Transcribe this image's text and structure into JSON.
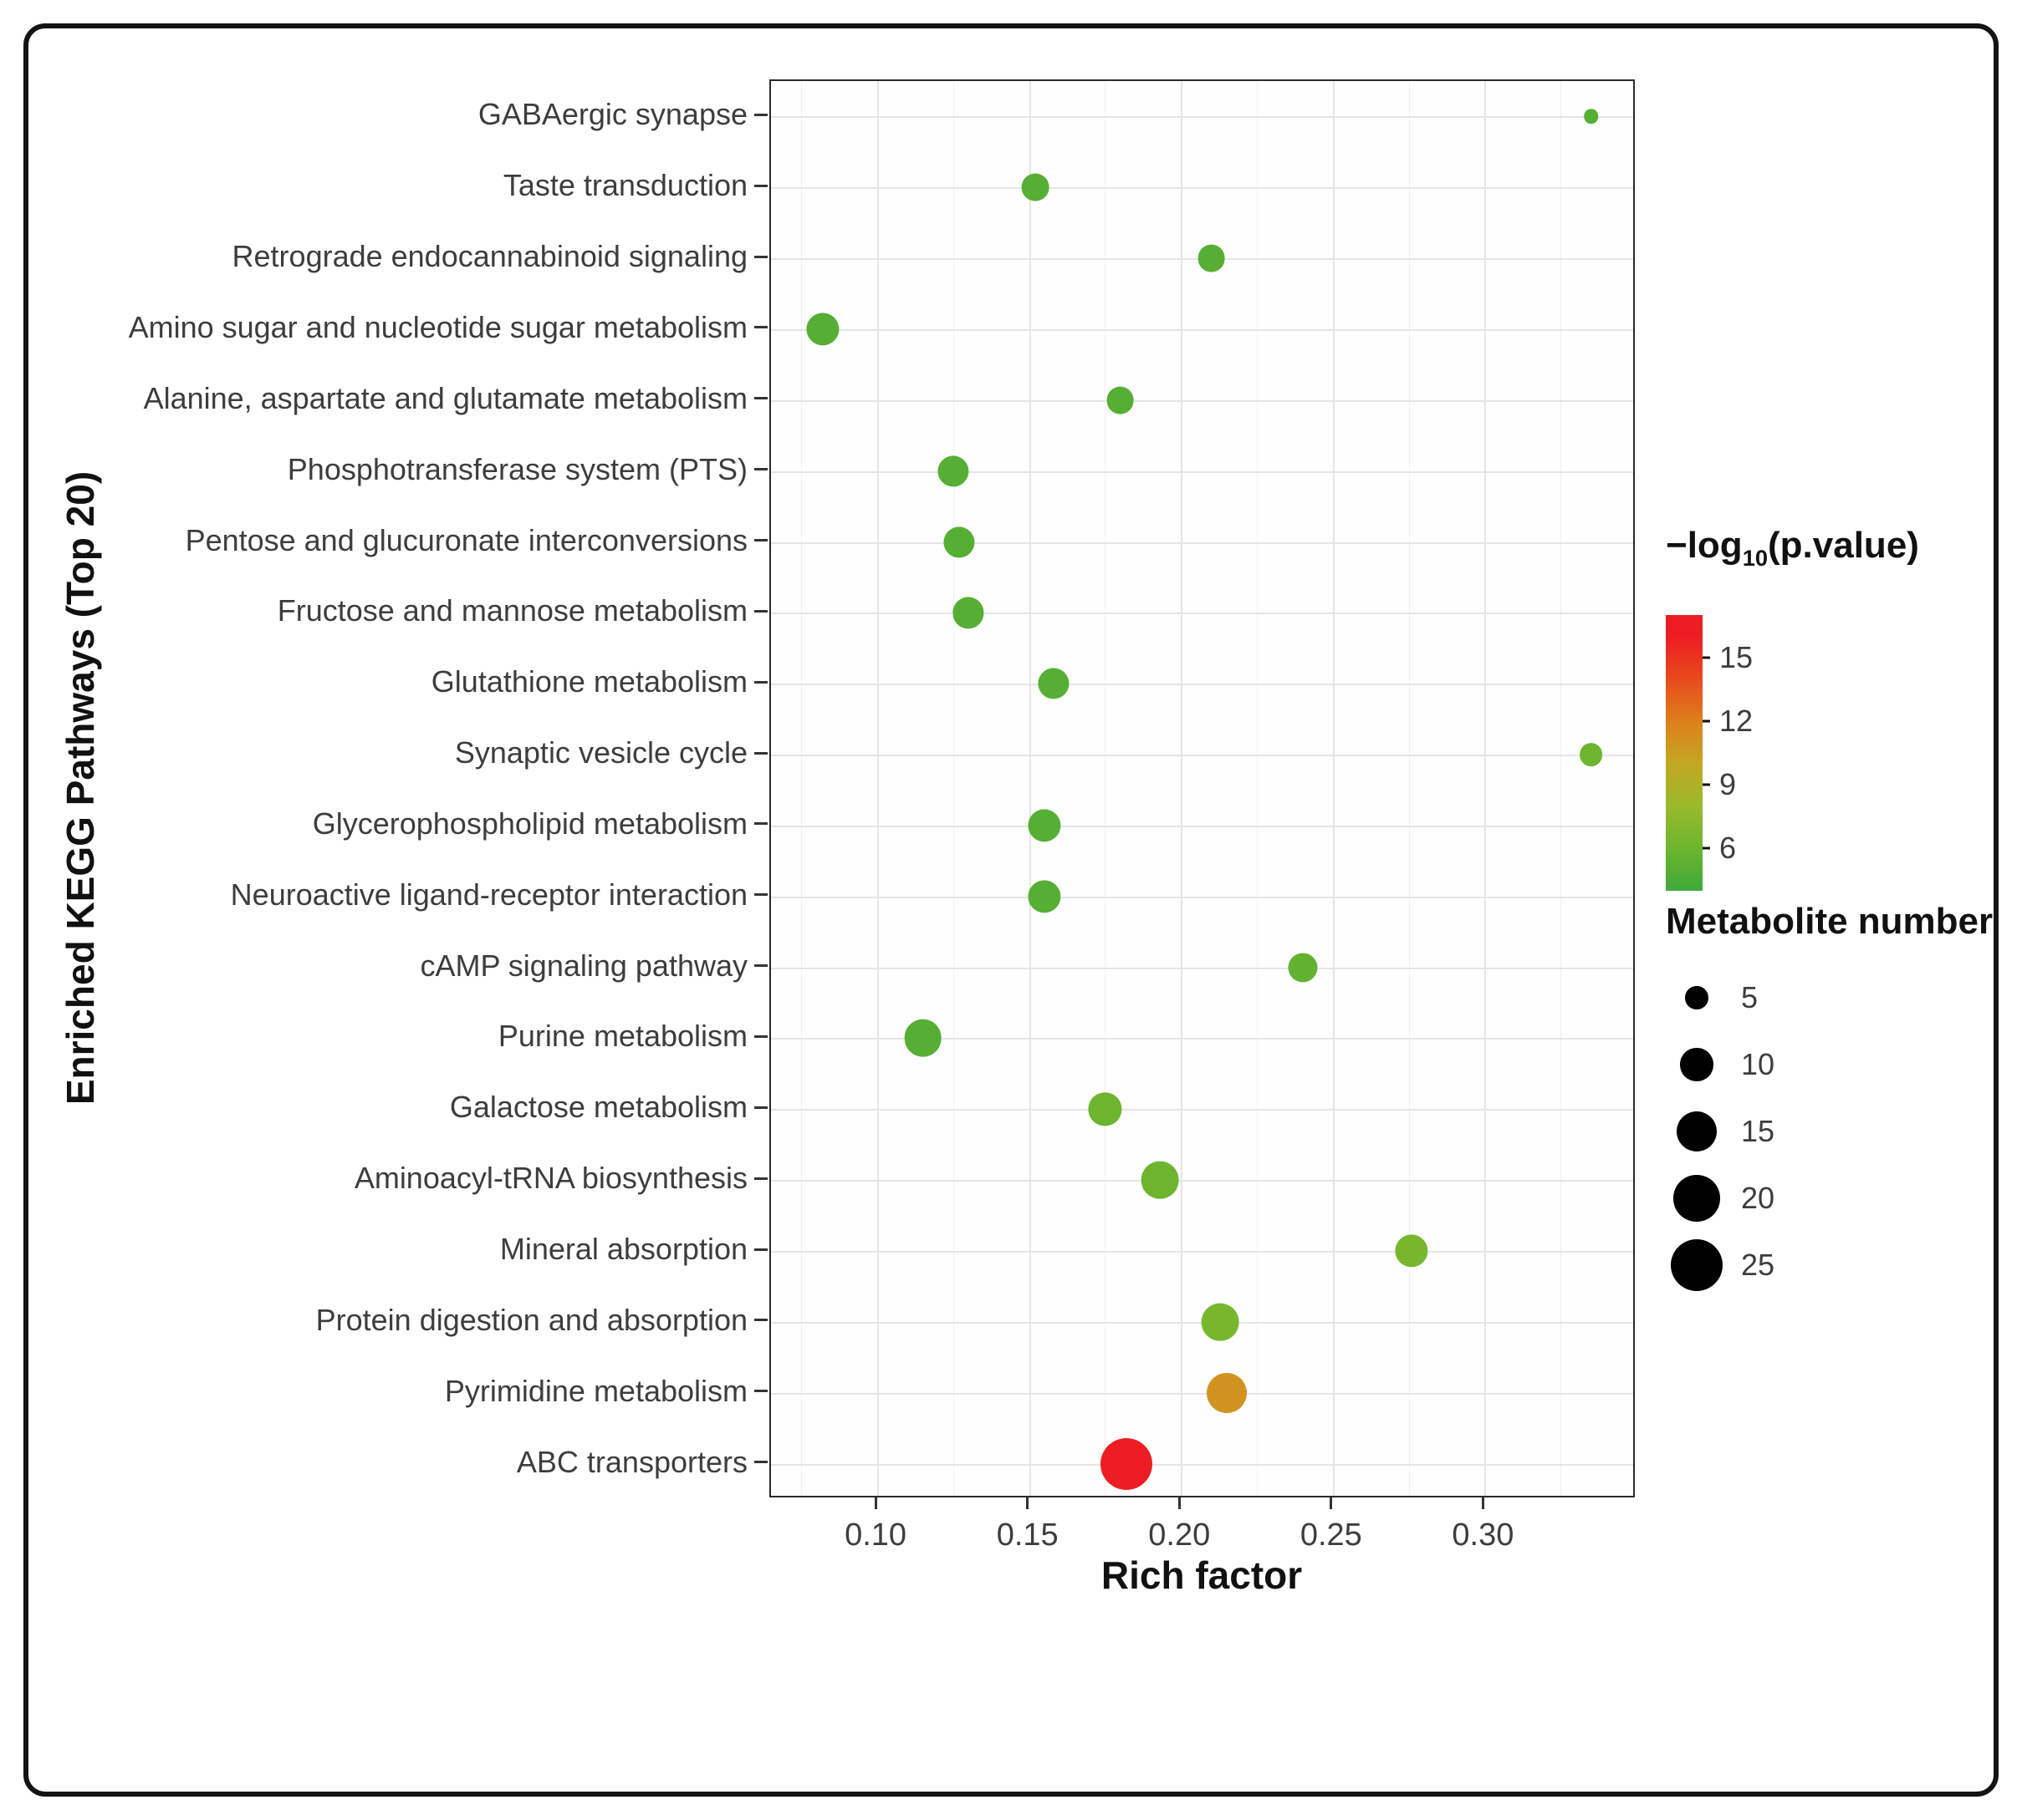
{
  "figure": {
    "background": "#ffffff",
    "border_color": "#141414"
  },
  "chart_data": {
    "type": "scatter",
    "title": "",
    "xlabel": "Rich factor",
    "ylabel": "Enriched KEGG Pathways (Top 20)",
    "xlim": [
      0.065,
      0.35
    ],
    "x_ticks": [
      0.1,
      0.15,
      0.2,
      0.25,
      0.3
    ],
    "x_tick_labels": [
      "0.10",
      "0.15",
      "0.20",
      "0.25",
      "0.30"
    ],
    "x_minor_ticks": [
      0.075,
      0.125,
      0.175,
      0.225,
      0.275,
      0.325
    ],
    "grid": true,
    "legend_position": "right",
    "points": [
      {
        "pathway": "GABAergic synapse",
        "rich_factor": 0.335,
        "metabolites": 2,
        "neg_log10_pvalue": 5
      },
      {
        "pathway": "Taste transduction",
        "rich_factor": 0.152,
        "metabolites": 7,
        "neg_log10_pvalue": 5
      },
      {
        "pathway": "Retrograde endocannabinoid signaling",
        "rich_factor": 0.21,
        "metabolites": 7,
        "neg_log10_pvalue": 5
      },
      {
        "pathway": "Amino sugar and nucleotide sugar metabolism",
        "rich_factor": 0.082,
        "metabolites": 10,
        "neg_log10_pvalue": 5
      },
      {
        "pathway": "Alanine, aspartate and glutamate metabolism",
        "rich_factor": 0.18,
        "metabolites": 7,
        "neg_log10_pvalue": 5
      },
      {
        "pathway": "Phosphotransferase system (PTS)",
        "rich_factor": 0.125,
        "metabolites": 9,
        "neg_log10_pvalue": 5
      },
      {
        "pathway": "Pentose and glucuronate interconversions",
        "rich_factor": 0.127,
        "metabolites": 9,
        "neg_log10_pvalue": 5
      },
      {
        "pathway": "Fructose and mannose metabolism",
        "rich_factor": 0.13,
        "metabolites": 9,
        "neg_log10_pvalue": 5
      },
      {
        "pathway": "Glutathione metabolism",
        "rich_factor": 0.158,
        "metabolites": 9,
        "neg_log10_pvalue": 5
      },
      {
        "pathway": "Synaptic vesicle cycle",
        "rich_factor": 0.335,
        "metabolites": 5,
        "neg_log10_pvalue": 6
      },
      {
        "pathway": "Glycerophospholipid metabolism",
        "rich_factor": 0.155,
        "metabolites": 10,
        "neg_log10_pvalue": 5
      },
      {
        "pathway": "Neuroactive ligand-receptor interaction",
        "rich_factor": 0.155,
        "metabolites": 10,
        "neg_log10_pvalue": 5
      },
      {
        "pathway": "cAMP signaling pathway",
        "rich_factor": 0.24,
        "metabolites": 8,
        "neg_log10_pvalue": 5.5
      },
      {
        "pathway": "Purine metabolism",
        "rich_factor": 0.115,
        "metabolites": 13,
        "neg_log10_pvalue": 5
      },
      {
        "pathway": "Galactose metabolism",
        "rich_factor": 0.175,
        "metabolites": 10,
        "neg_log10_pvalue": 6
      },
      {
        "pathway": "Aminoacyl-tRNA biosynthesis",
        "rich_factor": 0.193,
        "metabolites": 13,
        "neg_log10_pvalue": 6
      },
      {
        "pathway": "Mineral absorption",
        "rich_factor": 0.276,
        "metabolites": 10,
        "neg_log10_pvalue": 6.5
      },
      {
        "pathway": "Protein digestion and absorption",
        "rich_factor": 0.213,
        "metabolites": 13,
        "neg_log10_pvalue": 6.5
      },
      {
        "pathway": "Pyrimidine metabolism",
        "rich_factor": 0.215,
        "metabolites": 15,
        "neg_log10_pvalue": 11
      },
      {
        "pathway": "ABC transporters",
        "rich_factor": 0.182,
        "metabolites": 25,
        "neg_log10_pvalue": 16
      }
    ],
    "color_scale": {
      "vmin": 4,
      "vmax": 17,
      "stops": [
        [
          4,
          "#3fa93a"
        ],
        [
          6,
          "#6db52e"
        ],
        [
          8,
          "#9ab92c"
        ],
        [
          10,
          "#c4a722"
        ],
        [
          12,
          "#dd7f1b"
        ],
        [
          14,
          "#e8491d"
        ],
        [
          16,
          "#ee1d23"
        ]
      ]
    },
    "size_scale": {
      "radius_factor": 6.2
    },
    "legend_color": {
      "title_prefix": "−log",
      "title_sub": "10",
      "title_suffix": "(p.value)",
      "ticks": [
        15,
        12,
        9,
        6
      ]
    },
    "legend_size": {
      "title": "Metabolite number",
      "items": [
        5,
        10,
        15,
        20,
        25
      ]
    }
  }
}
